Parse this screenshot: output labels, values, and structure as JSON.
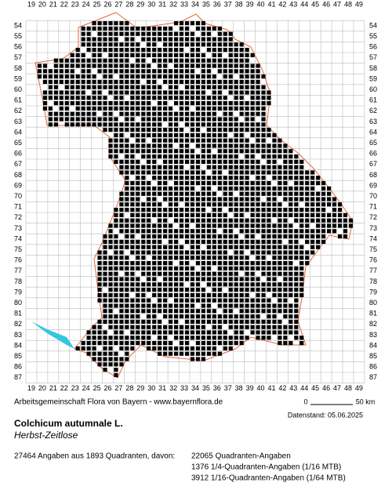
{
  "grid": {
    "columns": [
      19,
      20,
      21,
      22,
      23,
      24,
      25,
      26,
      27,
      28,
      29,
      30,
      31,
      32,
      33,
      34,
      35,
      36,
      37,
      38,
      39,
      40,
      41,
      42,
      43,
      44,
      45,
      46,
      47,
      48,
      49
    ],
    "rows": [
      54,
      55,
      56,
      57,
      58,
      59,
      60,
      61,
      62,
      63,
      64,
      65,
      66,
      67,
      68,
      69,
      70,
      71,
      72,
      73,
      74,
      75,
      76,
      77,
      78,
      79,
      80,
      81,
      82,
      83,
      84,
      85,
      86,
      87
    ]
  },
  "footer": {
    "credit": "Arbeitsgemeinschaft Flora von Bayern - www.bayernflora.de",
    "scale_start": "0",
    "scale_end": "50 km",
    "date": "Datenstand: 05.06.2025"
  },
  "species": {
    "name": "Colchicum autumnale L.",
    "common_name": "Herbst-Zeitlose"
  },
  "summary": {
    "total": "27464 Angaben aus 1893 Quadranten, davon:",
    "lines": [
      "22065 Quadranten-Angaben",
      "1376 1/4-Quadranten-Angaben (1/16 MTB)",
      "3912 1/16-Quadranten-Angaben (1/64 MTB)"
    ]
  }
}
